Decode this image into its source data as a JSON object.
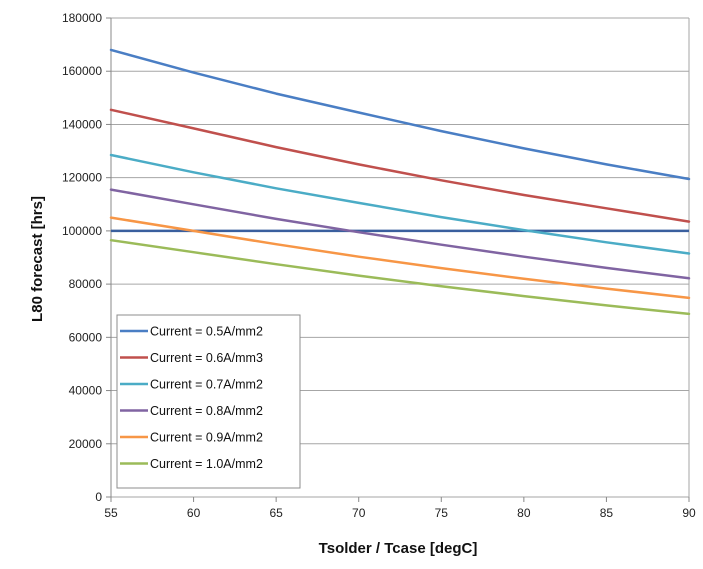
{
  "chart_data": {
    "type": "line",
    "title": "",
    "xlabel": "Tsolder / Tcase [degC]",
    "ylabel": "L80 forecast [hrs]",
    "xlim": [
      55,
      90
    ],
    "ylim": [
      0,
      180000
    ],
    "xticks": [
      55,
      60,
      65,
      70,
      75,
      80,
      85,
      90
    ],
    "yticks": [
      0,
      20000,
      40000,
      60000,
      80000,
      100000,
      120000,
      140000,
      160000,
      180000
    ],
    "grid": "horizontal",
    "legend_position": "bottom-left",
    "x": [
      55,
      60,
      65,
      70,
      75,
      80,
      85,
      90
    ],
    "series": [
      {
        "name": "Current = 0.5A/mm2",
        "color": "#4a7ec4",
        "values": [
          168000,
          159500,
          151600,
          144500,
          137500,
          131000,
          125000,
          119500
        ]
      },
      {
        "name": "Current = 0.6A/mm3",
        "color": "#c0504d",
        "values": [
          145500,
          138500,
          131500,
          125000,
          119000,
          113500,
          108500,
          103500
        ]
      },
      {
        "name": "Current = 0.7A/mm2",
        "color": "#4bacc6",
        "values": [
          128500,
          122000,
          116000,
          110500,
          105200,
          100300,
          95700,
          91500
        ]
      },
      {
        "name": "Current = 0.8A/mm2",
        "color": "#8064a2",
        "values": [
          115500,
          110000,
          104500,
          99500,
          94800,
          90300,
          86100,
          82200
        ]
      },
      {
        "name": "Current = 0.9A/mm2",
        "color": "#f79646",
        "values": [
          105000,
          100000,
          95000,
          90300,
          86000,
          82000,
          78300,
          74800
        ]
      },
      {
        "name": "Current = 1.0A/mm2",
        "color": "#9bbb59",
        "values": [
          96500,
          92000,
          87500,
          83200,
          79200,
          75500,
          72000,
          68800
        ]
      }
    ],
    "reference_line": {
      "y": 100000,
      "color": "#3a5f9e"
    }
  }
}
